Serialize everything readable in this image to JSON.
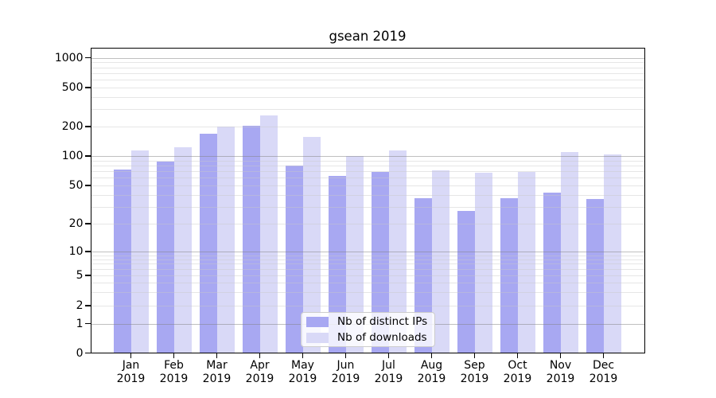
{
  "chart_data": {
    "type": "bar",
    "title": "gsean 2019",
    "xlabel": "",
    "ylabel": "",
    "yscale": "symlog",
    "grid": true,
    "legend_position": "lower center",
    "ylim": [
      0,
      1250
    ],
    "y_ticks": [
      0,
      1,
      2,
      5,
      10,
      20,
      50,
      100,
      200,
      500,
      1000
    ],
    "categories": [
      "Jan\n2019",
      "Feb\n2019",
      "Mar\n2019",
      "Apr\n2019",
      "May\n2019",
      "Jun\n2019",
      "Jul\n2019",
      "Aug\n2019",
      "Sep\n2019",
      "Oct\n2019",
      "Nov\n2019",
      "Dec\n2019"
    ],
    "series": [
      {
        "name": "Nb of distinct IPs",
        "color": "#a8a8f2",
        "values": [
          73,
          87,
          170,
          203,
          80,
          63,
          69,
          37,
          27,
          37,
          42,
          36
        ]
      },
      {
        "name": "Nb of downloads",
        "color": "#d9d9f7",
        "values": [
          114,
          123,
          201,
          258,
          157,
          100,
          115,
          71,
          68,
          69,
          110,
          104
        ]
      }
    ],
    "colors": {
      "major_grid": "rgba(130,130,130,0.5)",
      "minor_grid": "rgba(200,200,200,0.45)",
      "axis": "#000000",
      "background": "#ffffff"
    }
  }
}
